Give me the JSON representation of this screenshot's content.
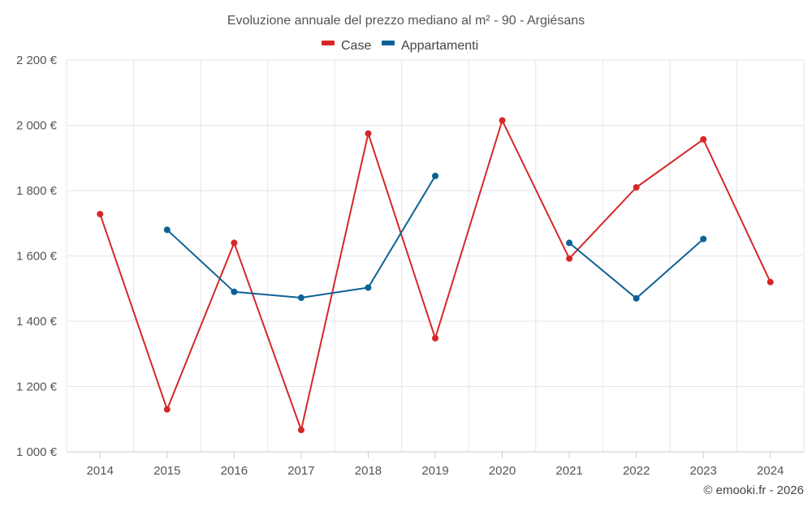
{
  "chart_data": {
    "type": "line",
    "title": "Evoluzione annuale del prezzo mediano al m² - 90 - Argiésans",
    "categories": [
      "2014",
      "2015",
      "2016",
      "2017",
      "2018",
      "2019",
      "2020",
      "2021",
      "2022",
      "2023",
      "2024"
    ],
    "y_ticks": [
      "1 000 €",
      "1 200 €",
      "1 400 €",
      "1 600 €",
      "1 800 €",
      "2 000 €",
      "2 200 €"
    ],
    "y_tick_values": [
      1000,
      1200,
      1400,
      1600,
      1800,
      2000,
      2200
    ],
    "ylim": [
      1000,
      2200
    ],
    "xlabel": "",
    "ylabel": "",
    "grid": true,
    "legend_position": "top-center",
    "series": [
      {
        "name": "Case",
        "color": "#d62728",
        "values": [
          1728,
          1130,
          1640,
          1067,
          1975,
          1348,
          2015,
          1592,
          1810,
          1957,
          1520
        ]
      },
      {
        "name": "Appartamenti",
        "color": "#0d6295",
        "values": [
          null,
          1680,
          1490,
          1472,
          1503,
          1845,
          null,
          1640,
          1470,
          1652,
          null
        ]
      }
    ],
    "credit": "© emooki.fr - 2026"
  }
}
